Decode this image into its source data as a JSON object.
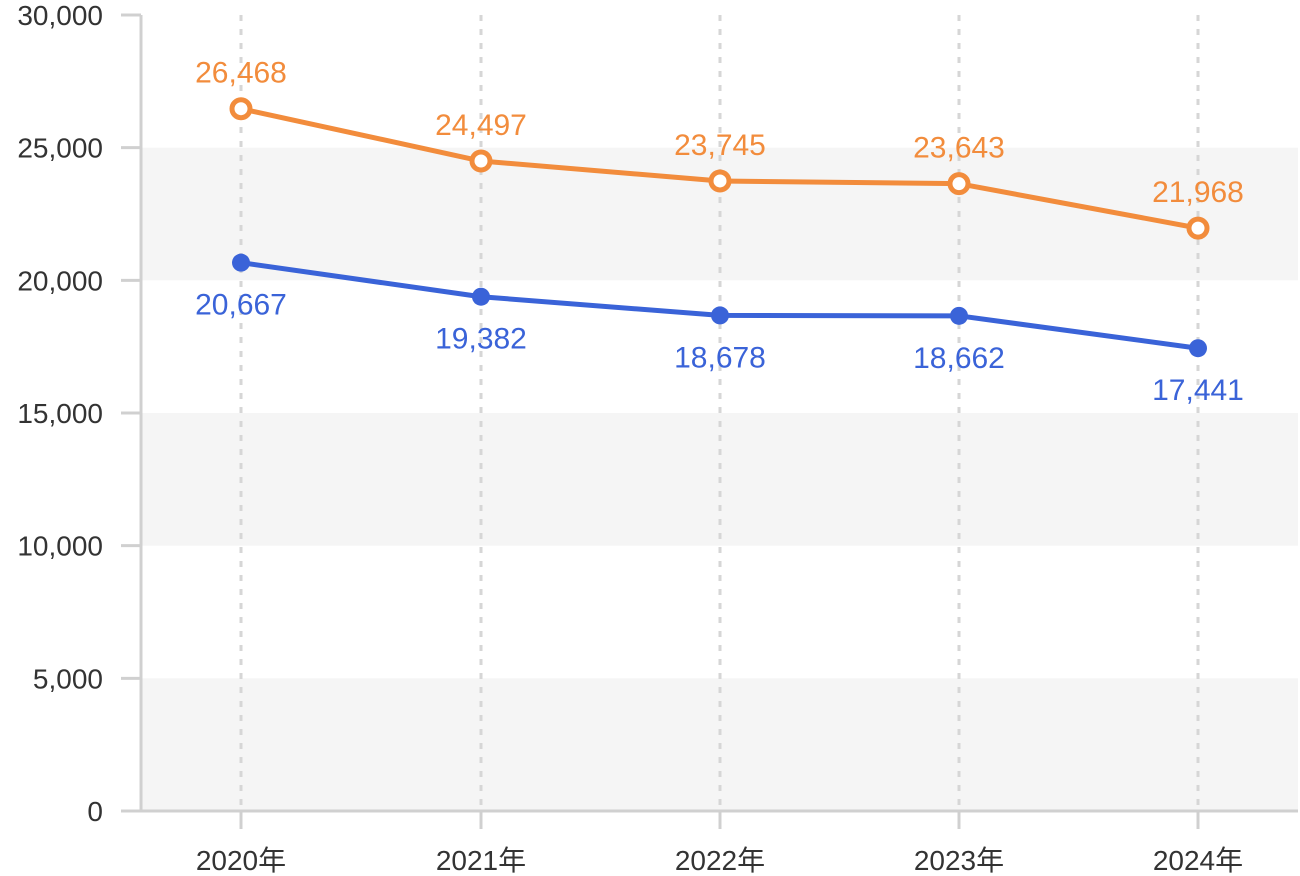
{
  "chart_data": {
    "type": "line",
    "title": "",
    "xlabel": "",
    "ylabel": "",
    "categories": [
      "2020年",
      "2021年",
      "2022年",
      "2023年",
      "2024年"
    ],
    "y_ticks": [
      "0",
      "5,000",
      "10,000",
      "15,000",
      "20,000",
      "25,000",
      "30,000"
    ],
    "ylim": [
      0,
      30000
    ],
    "grid": "alternating horizontal bands, dashed vertical gridlines",
    "legend": "none",
    "series": [
      {
        "values": [
          26468,
          24497,
          23745,
          23643,
          21968
        ],
        "labels": [
          "26,468",
          "24,497",
          "23,745",
          "23,643",
          "21,968"
        ],
        "color": "#f28c3c",
        "marker": "hollow-circle",
        "label_position": "above"
      },
      {
        "values": [
          20667,
          19382,
          18678,
          18662,
          17441
        ],
        "labels": [
          "20,667",
          "19,382",
          "18,678",
          "18,662",
          "17,441"
        ],
        "color": "#3a63d8",
        "marker": "filled-circle",
        "label_position": "below"
      }
    ]
  }
}
